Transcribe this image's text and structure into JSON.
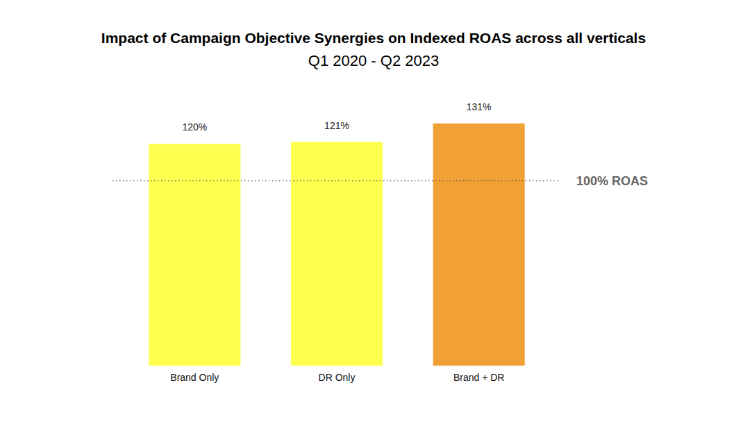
{
  "chart_data": {
    "type": "bar",
    "title": "Impact of Campaign Objective Synergies on Indexed ROAS across all verticals",
    "subtitle": "Q1 2020 - Q2 2023",
    "categories": [
      "Brand Only",
      "DR Only",
      "Brand + DR"
    ],
    "values": [
      120,
      121,
      131
    ],
    "value_labels": [
      "120%",
      "121%",
      "131%"
    ],
    "colors": [
      "#ffff50",
      "#ffff50",
      "#f0a035"
    ],
    "ylim": [
      0,
      131
    ],
    "reference_line": {
      "value": 100,
      "label": "100% ROAS"
    },
    "data_labels": true,
    "tick_labels": "x",
    "grid": false
  }
}
